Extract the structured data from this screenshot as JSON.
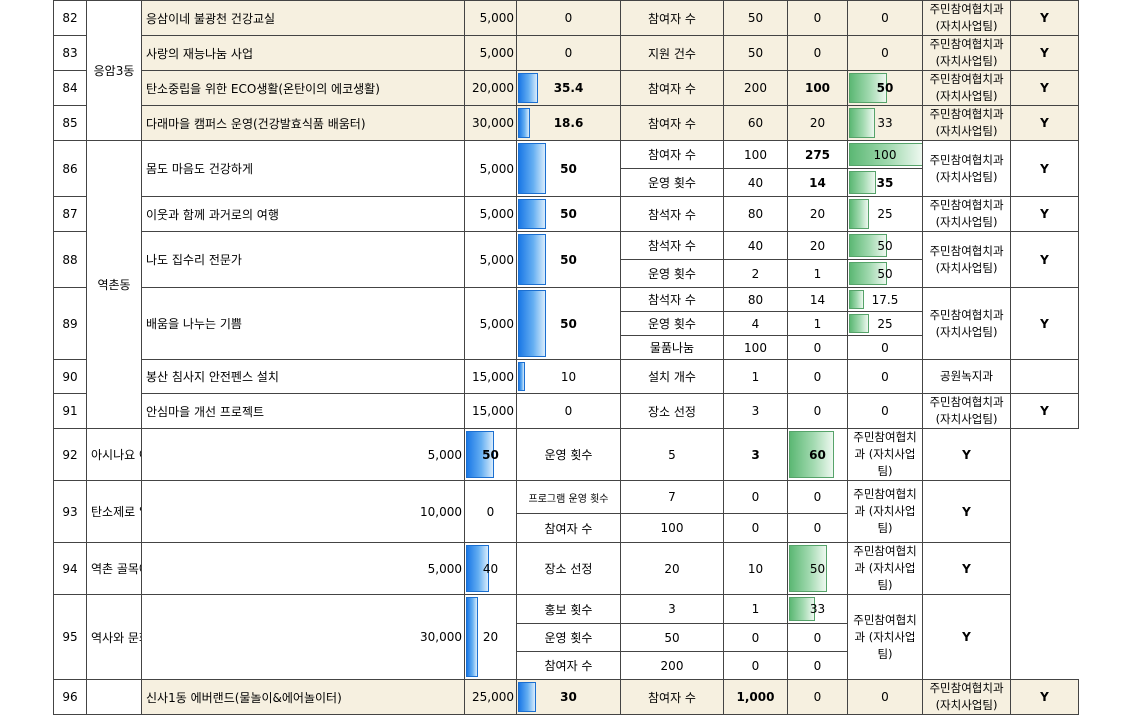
{
  "rows": [
    {
      "no": "82",
      "dong": "응암3동",
      "dong_rows": 4,
      "project": "응삼이네 불광천 건강교실",
      "budget": "5,000",
      "rate": "0",
      "rate_pct": 0,
      "rate_bold": false,
      "beige": true,
      "dept": "주민참여협치과 (자치사업팀)",
      "yn": "Y",
      "indicators": [
        {
          "name": "참여자 수",
          "target": "50",
          "actual": "0",
          "ach": "0",
          "ach_pct": 0
        }
      ]
    },
    {
      "no": "83",
      "project": "사랑의 재능나눔 사업",
      "budget": "5,000",
      "rate": "0",
      "rate_pct": 0,
      "rate_bold": false,
      "beige": true,
      "dept": "주민참여협치과 (자치사업팀)",
      "yn": "Y",
      "indicators": [
        {
          "name": "지원 건수",
          "target": "50",
          "actual": "0",
          "ach": "0",
          "ach_pct": 0
        }
      ]
    },
    {
      "no": "84",
      "project": "탄소중립을 위한 ECO생활(온탄이의 에코생활)",
      "budget": "20,000",
      "rate": "35.4",
      "rate_pct": 35.4,
      "rate_bold": true,
      "beige": true,
      "dept": "주민참여협치과 (자치사업팀)",
      "yn": "Y",
      "indicators": [
        {
          "name": "참여자 수",
          "target": "200",
          "actual": "100",
          "actual_bold": true,
          "ach": "50",
          "ach_pct": 50,
          "ach_bold": true
        }
      ]
    },
    {
      "no": "85",
      "project": "다래마을 캠퍼스 운영(건강발효식품 배움터)",
      "budget": "30,000",
      "rate": "18.6",
      "rate_pct": 18.6,
      "rate_bold": true,
      "beige": true,
      "dept": "주민참여협치과 (자치사업팀)",
      "yn": "Y",
      "indicators": [
        {
          "name": "참여자 수",
          "target": "60",
          "actual": "20",
          "ach": "33",
          "ach_pct": 33
        }
      ]
    },
    {
      "no": "86",
      "dong": "역촌동",
      "dong_rows": 10,
      "project": "몸도 마음도 건강하게",
      "budget": "5,000",
      "rate": "50",
      "rate_pct": 50,
      "rate_bold": true,
      "dept": "주민참여협치과 (자치사업팀)",
      "yn": "Y",
      "indicators": [
        {
          "name": "참여자 수",
          "target": "100",
          "actual": "275",
          "actual_bold": true,
          "ach": "100",
          "ach_pct": 100
        },
        {
          "name": "운영 횟수",
          "target": "40",
          "actual": "14",
          "actual_bold": true,
          "ach": "35",
          "ach_pct": 35,
          "ach_bold": true
        }
      ]
    },
    {
      "no": "87",
      "project": "이웃과 함께 과거로의 여행",
      "budget": "5,000",
      "rate": "50",
      "rate_pct": 50,
      "rate_bold": true,
      "dept": "주민참여협치과 (자치사업팀)",
      "yn": "Y",
      "indicators": [
        {
          "name": "참석자 수",
          "target": "80",
          "actual": "20",
          "ach": "25",
          "ach_pct": 25
        }
      ]
    },
    {
      "no": "88",
      "project": "나도 집수리 전문가",
      "budget": "5,000",
      "rate": "50",
      "rate_pct": 50,
      "rate_bold": true,
      "dept": "주민참여협치과 (자치사업팀)",
      "yn": "Y",
      "indicators": [
        {
          "name": "참석자 수",
          "target": "40",
          "actual": "20",
          "ach": "50",
          "ach_pct": 50
        },
        {
          "name": "운영 횟수",
          "target": "2",
          "actual": "1",
          "ach": "50",
          "ach_pct": 50
        }
      ]
    },
    {
      "no": "89",
      "project": "배움을 나누는 기쁨",
      "budget": "5,000",
      "rate": "50",
      "rate_pct": 50,
      "rate_bold": true,
      "dept": "주민참여협치과 (자치사업팀)",
      "yn": "Y",
      "indicators": [
        {
          "name": "참석자 수",
          "target": "80",
          "actual": "14",
          "ach": "17.5",
          "ach_pct": 17.5
        },
        {
          "name": "운영 횟수",
          "target": "4",
          "actual": "1",
          "ach": "25",
          "ach_pct": 25
        },
        {
          "name": "물품나눔",
          "target": "100",
          "actual": "0",
          "ach": "0",
          "ach_pct": 0
        }
      ]
    },
    {
      "no": "90",
      "project": "봉산 침사지 안전펜스 설치",
      "budget": "15,000",
      "rate": "10",
      "rate_pct": 10,
      "rate_bold": false,
      "dept": "공원녹지과",
      "yn": "",
      "indicators": [
        {
          "name": "설치 개수",
          "target": "1",
          "actual": "0",
          "ach": "0",
          "ach_pct": 0
        }
      ]
    },
    {
      "no": "91",
      "project": "안심마을 개선 프로젝트",
      "budget": "15,000",
      "rate": "0",
      "rate_pct": 0,
      "rate_bold": false,
      "dept": "주민참여협치과 (자치사업팀)",
      "yn": "Y",
      "indicators": [
        {
          "name": "장소 선정",
          "target": "3",
          "actual": "0",
          "ach": "0",
          "ach_pct": 0
        }
      ]
    },
    {
      "no": "92",
      "project": "아시나요 아나바다",
      "budget": "5,000",
      "rate": "50",
      "rate_pct": 50,
      "rate_bold": true,
      "dept": "주민참여협치과 (자치사업팀)",
      "yn": "Y",
      "indicators": [
        {
          "name": "운영 횟수",
          "target": "5",
          "actual": "3",
          "actual_bold": true,
          "ach": "60",
          "ach_pct": 60,
          "ach_bold": true
        }
      ]
    },
    {
      "no": "93",
      "project": "탄소제로 일곱 개의 약속",
      "budget": "10,000",
      "rate": "0",
      "rate_pct": 0,
      "rate_bold": false,
      "dept": "주민참여협치과 (자치사업팀)",
      "yn": "Y",
      "indicators": [
        {
          "name": "프로그램 운영 횟수",
          "small": true,
          "target": "7",
          "actual": "0",
          "ach": "0",
          "ach_pct": 0
        },
        {
          "name": "참여자 수",
          "target": "100",
          "actual": "0",
          "ach": "0",
          "ach_pct": 0
        }
      ]
    },
    {
      "no": "94",
      "project": "역촌 골목에 꽃을",
      "budget": "5,000",
      "rate": "40",
      "rate_pct": 40,
      "rate_bold": false,
      "dept": "주민참여협치과 (자치사업팀)",
      "yn": "Y",
      "indicators": [
        {
          "name": "장소 선정",
          "target": "20",
          "actual": "10",
          "ach": "50",
          "ach_pct": 50
        }
      ]
    },
    {
      "no": "95",
      "project": "역사와 문화가 숨쉬는 행복공간 조성",
      "budget": "30,000",
      "rate": "20",
      "rate_pct": 20,
      "rate_bold": false,
      "dept": "주민참여협치과 (자치사업팀)",
      "yn": "Y",
      "indicators": [
        {
          "name": "홍보 횟수",
          "target": "3",
          "actual": "1",
          "ach": "33",
          "ach_pct": 33
        },
        {
          "name": "운영 횟수",
          "target": "50",
          "actual": "0",
          "ach": "0",
          "ach_pct": 0
        },
        {
          "name": "참여자 수",
          "target": "200",
          "actual": "0",
          "ach": "0",
          "ach_pct": 0
        }
      ]
    },
    {
      "no": "96",
      "dong": "",
      "dong_rows": 1,
      "project": "신사1동 에버랜드(물놀이&에어놀이터)",
      "budget": "25,000",
      "rate": "30",
      "rate_pct": 30,
      "rate_bold": true,
      "beige": true,
      "dept": "주민참여협치과 (자치사업팀)",
      "yn": "Y",
      "indicators": [
        {
          "name": "참여자 수",
          "target": "1,000",
          "target_bold": true,
          "actual": "0",
          "ach": "0",
          "ach_pct": 0
        }
      ]
    }
  ],
  "heights": {
    "82": [
      34
    ],
    "83": [
      34
    ],
    "84": [
      35
    ],
    "85": [
      34
    ],
    "86": [
      28,
      28
    ],
    "87": [
      28
    ],
    "88": [
      28,
      28
    ],
    "89": [
      24,
      24,
      24
    ],
    "90": [
      34
    ],
    "91": [
      34
    ],
    "92": [
      35
    ],
    "93": [
      33,
      29
    ],
    "94": [
      35
    ],
    "95": [
      29,
      28,
      28
    ],
    "96": [
      35
    ]
  },
  "colors": {
    "rate_bar": "#1b78e6",
    "ach_bar": "#5cb874",
    "beige": "#f6f0e0"
  }
}
